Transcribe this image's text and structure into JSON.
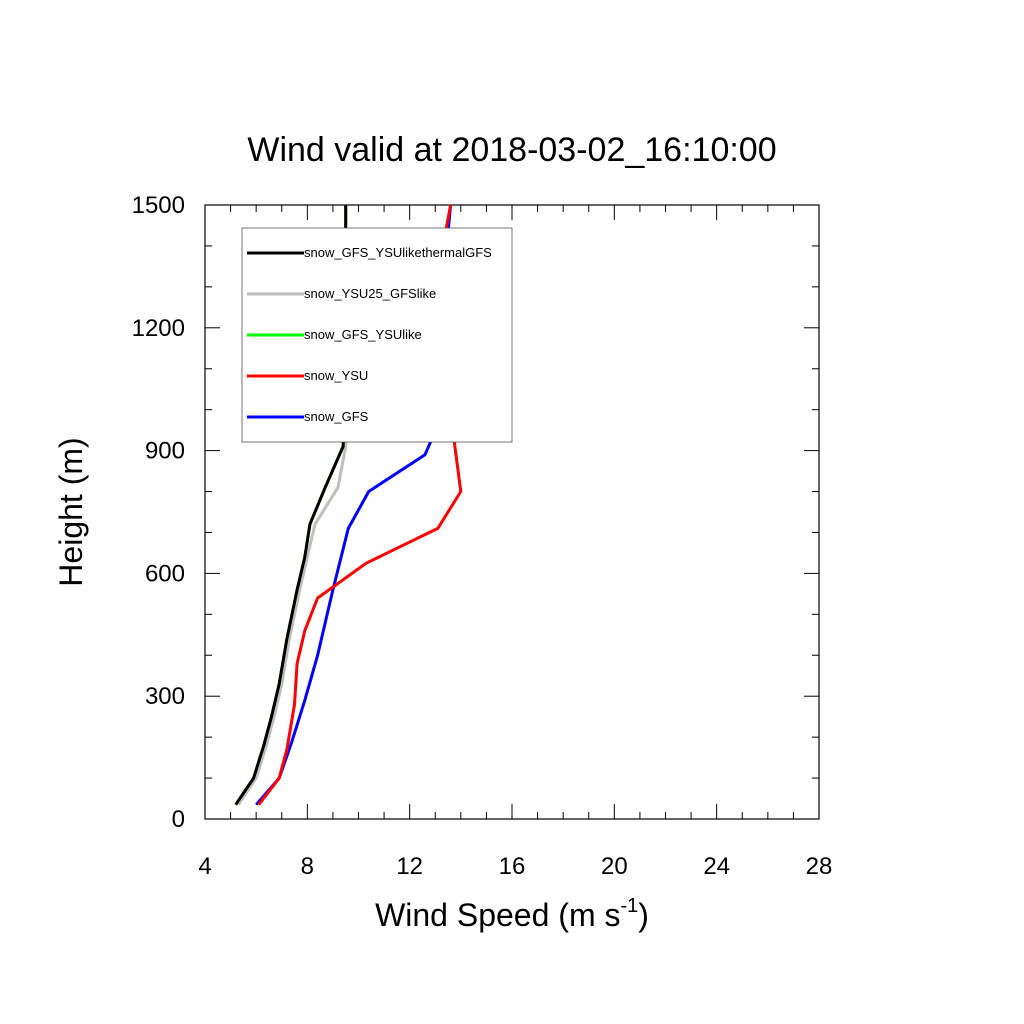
{
  "chart_data": {
    "type": "line",
    "title": "Wind valid at 2018-03-02_16:10:00",
    "xlabel": "Wind Speed (m s",
    "xlabel_superscript": "-1",
    "xlabel_suffix": ")",
    "ylabel": "Height (m)",
    "xlim": [
      4,
      28
    ],
    "ylim": [
      0,
      1500
    ],
    "xticks": [
      4,
      8,
      12,
      16,
      20,
      24,
      28
    ],
    "yticks": [
      0,
      300,
      600,
      900,
      1200,
      1500
    ],
    "xtick_labels": [
      "4",
      "8",
      "12",
      "16",
      "20",
      "24",
      "28"
    ],
    "ytick_labels": [
      "0",
      "300",
      "600",
      "900",
      "1200",
      "1500"
    ],
    "grid": false,
    "legend_position": "top-left",
    "series": [
      {
        "name": "snow_GFS_YSUlikethermalGFS",
        "color": "#000000",
        "points": [
          [
            5.2,
            35
          ],
          [
            5.9,
            100
          ],
          [
            6.3,
            180
          ],
          [
            6.6,
            250
          ],
          [
            6.9,
            330
          ],
          [
            7.2,
            440
          ],
          [
            7.6,
            560
          ],
          [
            7.9,
            640
          ],
          [
            8.1,
            720
          ],
          [
            8.7,
            810
          ],
          [
            9.4,
            910
          ],
          [
            9.45,
            1000
          ],
          [
            9.5,
            1200
          ],
          [
            9.5,
            1500
          ]
        ]
      },
      {
        "name": "snow_YSU25_GFSlike",
        "color": "#bebebe",
        "points": [
          [
            5.3,
            35
          ],
          [
            6.0,
            100
          ],
          [
            6.4,
            180
          ],
          [
            6.7,
            250
          ],
          [
            7.0,
            330
          ],
          [
            7.3,
            440
          ],
          [
            7.7,
            560
          ],
          [
            8.0,
            640
          ],
          [
            8.3,
            720
          ],
          [
            9.2,
            810
          ],
          [
            9.5,
            910
          ],
          [
            9.5,
            1200
          ],
          [
            9.5,
            1500
          ]
        ]
      },
      {
        "name": "snow_GFS_YSUlike",
        "color": "#00ff00",
        "points": [
          [
            5.2,
            35
          ],
          [
            5.9,
            100
          ],
          [
            6.3,
            180
          ],
          [
            6.6,
            250
          ],
          [
            6.9,
            330
          ],
          [
            7.2,
            440
          ],
          [
            7.6,
            560
          ],
          [
            7.9,
            640
          ],
          [
            8.1,
            720
          ],
          [
            8.7,
            810
          ],
          [
            9.4,
            910
          ],
          [
            9.45,
            1000
          ],
          [
            9.5,
            1200
          ],
          [
            9.5,
            1500
          ]
        ]
      },
      {
        "name": "snow_YSU",
        "color": "#ff0000",
        "points": [
          [
            6.1,
            35
          ],
          [
            6.9,
            100
          ],
          [
            7.2,
            170
          ],
          [
            7.5,
            280
          ],
          [
            7.6,
            380
          ],
          [
            7.9,
            460
          ],
          [
            8.4,
            540
          ],
          [
            10.3,
            625
          ],
          [
            13.1,
            710
          ],
          [
            14.0,
            800
          ],
          [
            13.6,
            990
          ],
          [
            13.0,
            1180
          ],
          [
            13.0,
            1300
          ],
          [
            13.6,
            1500
          ]
        ]
      },
      {
        "name": "snow_GFS",
        "color": "#0000ff",
        "points": [
          [
            6.0,
            35
          ],
          [
            6.9,
            100
          ],
          [
            7.4,
            190
          ],
          [
            7.9,
            290
          ],
          [
            8.4,
            400
          ],
          [
            9.0,
            560
          ],
          [
            9.6,
            710
          ],
          [
            10.4,
            800
          ],
          [
            12.6,
            890
          ],
          [
            13.3,
            990
          ],
          [
            13.2,
            1200
          ],
          [
            13.3,
            1300
          ],
          [
            13.6,
            1500
          ]
        ]
      }
    ]
  }
}
